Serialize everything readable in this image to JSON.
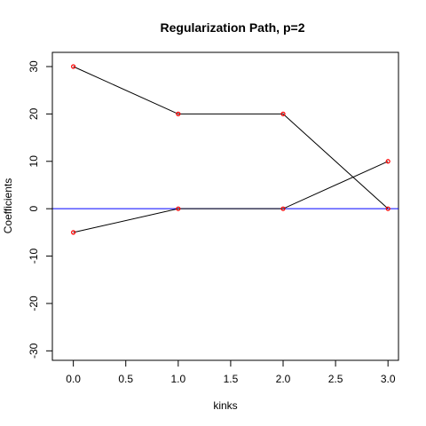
{
  "chart_data": {
    "type": "line",
    "title": "Regularization Path, p=2",
    "xlabel": "kinks",
    "ylabel": "Coefficients",
    "xlim": [
      -0.2,
      3.1
    ],
    "ylim": [
      -32,
      33
    ],
    "x_ticks": [
      0.0,
      0.5,
      1.0,
      1.5,
      2.0,
      2.5,
      3.0
    ],
    "x_tick_labels": [
      "0.0",
      "0.5",
      "1.0",
      "1.5",
      "2.0",
      "2.5",
      "3.0"
    ],
    "y_ticks": [
      -30,
      -20,
      -10,
      0,
      10,
      20,
      30
    ],
    "y_tick_labels": [
      "-30",
      "-20",
      "-10",
      "0",
      "10",
      "20",
      "30"
    ],
    "grid": false,
    "reference_line": {
      "y": 0,
      "color": "#0000ff"
    },
    "series_color": "#000000",
    "point_color": "#ff0000",
    "x": [
      0,
      1,
      2,
      3
    ],
    "series": [
      {
        "values": [
          30,
          20,
          20,
          0
        ]
      },
      {
        "values": [
          -5,
          0,
          0,
          10
        ]
      }
    ]
  }
}
